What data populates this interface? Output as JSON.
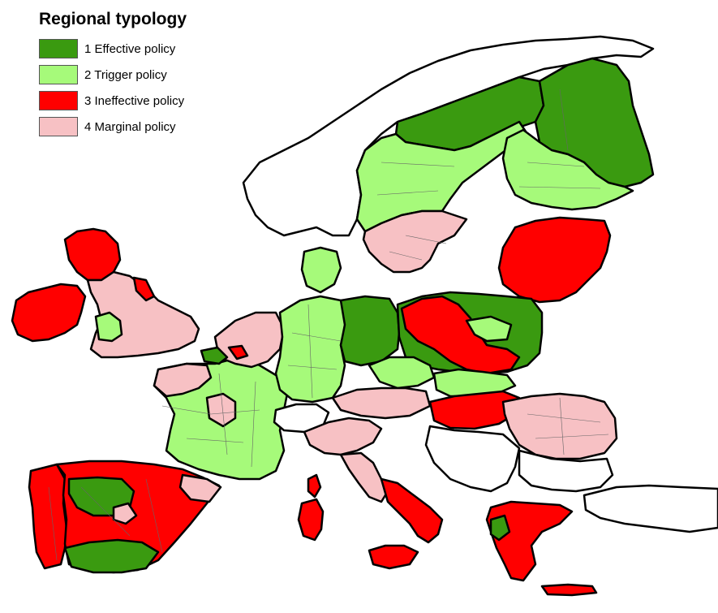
{
  "legend": {
    "title": "Regional typology",
    "items": [
      {
        "label": "1 Effective policy",
        "color": "#3a9a10"
      },
      {
        "label": "2 Trigger policy",
        "color": "#a6fa7a"
      },
      {
        "label": "3 Ineffective policy",
        "color": "#ff0000"
      },
      {
        "label": "4 Marginal policy",
        "color": "#f7c1c4"
      }
    ]
  },
  "colors": {
    "no_data": "#ffffff",
    "border": "#000000",
    "region_border": "#666666"
  }
}
